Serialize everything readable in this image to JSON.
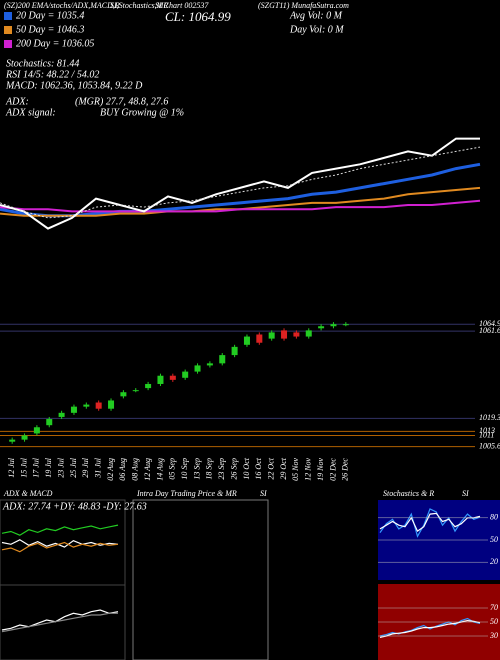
{
  "header": {
    "left": "(SZ)200 EMA/stochs/ADX,MACD,R",
    "mid": "SI,Stochastics,MR",
    "code": "SI Chart 002537",
    "right": "(SZGT11) MunafaSutra.com",
    "close": "CL: 1064.99",
    "avg_vol": "Avg Vol: 0  M",
    "day_vol": "Day Vol: 0  M"
  },
  "legend_info": [
    "Stochastics: 81.44",
    "RSI 14/5: 48.22 / 54.02",
    "MACD: 1062.36, 1053.84, 9.22  D"
  ],
  "adx_info": {
    "label": "ADX:",
    "value": "(MGR) 27.7, 48.8, 27.6",
    "signal_label": "ADX  signal:",
    "signal": "BUY Growing @ 1%"
  },
  "chart_data": [
    {
      "type": "line",
      "ylim": [
        960,
        1100
      ],
      "series": [
        {
          "name": "20 Day = 1035.4",
          "color": "#1e5fe0",
          "width": 3,
          "values": [
            1007,
            1005,
            1004,
            1004,
            1005,
            1006,
            1006,
            1007,
            1008,
            1009,
            1010,
            1011,
            1012,
            1014,
            1015,
            1017,
            1019,
            1021,
            1023,
            1026,
            1028
          ]
        },
        {
          "name": "50 Day = 1046.3",
          "color": "#e08a20",
          "width": 2,
          "values": [
            1005,
            1004,
            1004,
            1004,
            1004,
            1005,
            1005,
            1006,
            1006,
            1007,
            1007,
            1008,
            1009,
            1010,
            1010,
            1011,
            1012,
            1014,
            1015,
            1016,
            1017
          ]
        },
        {
          "name": "200 Day = 1036.05",
          "color": "#d020d0",
          "width": 2,
          "values": [
            1008,
            1007,
            1007,
            1006,
            1006,
            1006,
            1006,
            1006,
            1006,
            1006,
            1007,
            1007,
            1007,
            1007,
            1008,
            1008,
            1008,
            1009,
            1009,
            1010,
            1011
          ]
        },
        {
          "color": "#ffffff",
          "width": 2,
          "values": [
            1009,
            1006,
            998,
            1003,
            1012,
            1009,
            1006,
            1013,
            1010,
            1014,
            1017,
            1020,
            1017,
            1024,
            1026,
            1028,
            1031,
            1034,
            1032,
            1040,
            1040
          ]
        },
        {
          "color": "#dddddd",
          "width": 1,
          "dash": true,
          "values": [
            1010,
            1006,
            1003,
            1004,
            1008,
            1009,
            1008,
            1010,
            1011,
            1013,
            1015,
            1017,
            1018,
            1021,
            1023,
            1026,
            1028,
            1030,
            1032,
            1034,
            1036
          ]
        }
      ]
    },
    {
      "type": "candlestick",
      "ylim": [
        1003,
        1068
      ],
      "yticks": [
        1064.99,
        1061.63,
        1019.33,
        1013,
        1011,
        {
          "value": 1005.6,
          "label": "1005.60"
        }
      ],
      "up_color": "#22cc22",
      "down_color": "#dd2222",
      "categories": [
        "12 Jul",
        "15 Jul",
        "17 Jul",
        "19 Jul",
        "23 Jul",
        "25 Jul",
        "29 Jul",
        "31 Jul",
        "02 Aug",
        "06 Aug",
        "08 Aug",
        "12 Aug",
        "14 Aug",
        "05 Sep",
        "10 Sep",
        "13 Sep",
        "18 Sep",
        "23 Sep",
        "26 Sep",
        "10 Oct",
        "16 Oct",
        "22 Oct",
        "29 Oct",
        "05 Nov",
        "12 Nov",
        "19 Nov",
        "02 Dec",
        "26 Dec"
      ],
      "open": [
        1008,
        1009,
        1012,
        1016,
        1020,
        1022,
        1025,
        1027,
        1024,
        1030,
        1033,
        1034,
        1036,
        1040,
        1039,
        1042,
        1045,
        1046,
        1050,
        1055,
        1060,
        1058,
        1062,
        1061,
        1059,
        1063,
        1064,
        1065
      ],
      "high": [
        1010,
        1012,
        1016,
        1020,
        1023,
        1026,
        1027,
        1028,
        1029,
        1033,
        1034,
        1037,
        1041,
        1041,
        1043,
        1046,
        1047,
        1051,
        1055,
        1060,
        1061,
        1062,
        1063,
        1062,
        1063,
        1065,
        1066,
        1066
      ],
      "low": [
        1007,
        1008,
        1011,
        1015,
        1019,
        1021,
        1024,
        1023,
        1023,
        1029,
        1032,
        1033,
        1035,
        1037,
        1038,
        1041,
        1044,
        1045,
        1049,
        1054,
        1055,
        1057,
        1057,
        1058,
        1058,
        1062,
        1063,
        1064
      ],
      "close": [
        1009,
        1011,
        1015,
        1019,
        1022,
        1025,
        1026,
        1024,
        1028,
        1032,
        1033,
        1036,
        1040,
        1038,
        1042,
        1045,
        1046,
        1050,
        1054,
        1059,
        1056,
        1061,
        1058,
        1059,
        1062,
        1064,
        1065,
        1065
      ]
    },
    {
      "type": "line",
      "title": "ADX  & MACD",
      "subtitle": "ADX: 27.74  +DY: 48.83  -DY: 27.63",
      "ylim": [
        0,
        60
      ],
      "series": [
        {
          "color": "#ffffff",
          "values": [
            30,
            28,
            33,
            27,
            31,
            26,
            29,
            25,
            32,
            28,
            30,
            27,
            29,
            28
          ]
        },
        {
          "color": "#22cc22",
          "values": [
            40,
            42,
            38,
            44,
            41,
            45,
            43,
            47,
            44,
            46,
            48,
            45,
            47,
            49
          ]
        },
        {
          "color": "#e08a20",
          "values": [
            22,
            24,
            20,
            26,
            29,
            24,
            27,
            30,
            25,
            28,
            26,
            29,
            27,
            28
          ]
        }
      ]
    },
    {
      "type": "line",
      "ylim": [
        -10,
        20
      ],
      "series": [
        {
          "color": "#ffffff",
          "values": [
            2,
            3,
            5,
            4,
            6,
            8,
            7,
            10,
            12,
            11,
            13,
            14,
            12,
            13
          ]
        },
        {
          "color": "#888888",
          "values": [
            1,
            2,
            3,
            4,
            5,
            6,
            7,
            8,
            9,
            10,
            11,
            11,
            12,
            12
          ]
        }
      ]
    },
    {
      "type": "panel",
      "title": "Intra Day Trading Price  & MR",
      "title2": "SI"
    },
    {
      "type": "line",
      "title": "Stochastics & R",
      "title2": "SI",
      "ylim": [
        0,
        100
      ],
      "yticks": [
        80,
        50,
        20
      ],
      "background": "#000080",
      "series": [
        {
          "color": "#3399ff",
          "values": [
            60,
            72,
            78,
            65,
            70,
            85,
            55,
            70,
            92,
            88,
            70,
            80,
            62,
            75,
            85,
            78,
            81
          ]
        },
        {
          "color": "#ffffff",
          "values": [
            65,
            70,
            75,
            70,
            68,
            80,
            62,
            68,
            85,
            86,
            75,
            78,
            68,
            72,
            80,
            80,
            82
          ]
        }
      ]
    },
    {
      "type": "line",
      "ylim": [
        0,
        100
      ],
      "yticks": [
        70,
        50,
        30
      ],
      "background": "#900000",
      "series": [
        {
          "color": "#3399ff",
          "values": [
            30,
            32,
            35,
            33,
            36,
            38,
            42,
            45,
            40,
            44,
            47,
            50,
            46,
            52,
            55,
            50,
            48
          ]
        },
        {
          "color": "#ffffff",
          "values": [
            28,
            30,
            33,
            34,
            35,
            37,
            40,
            42,
            42,
            43,
            45,
            47,
            48,
            50,
            52,
            51,
            49
          ]
        }
      ]
    }
  ]
}
